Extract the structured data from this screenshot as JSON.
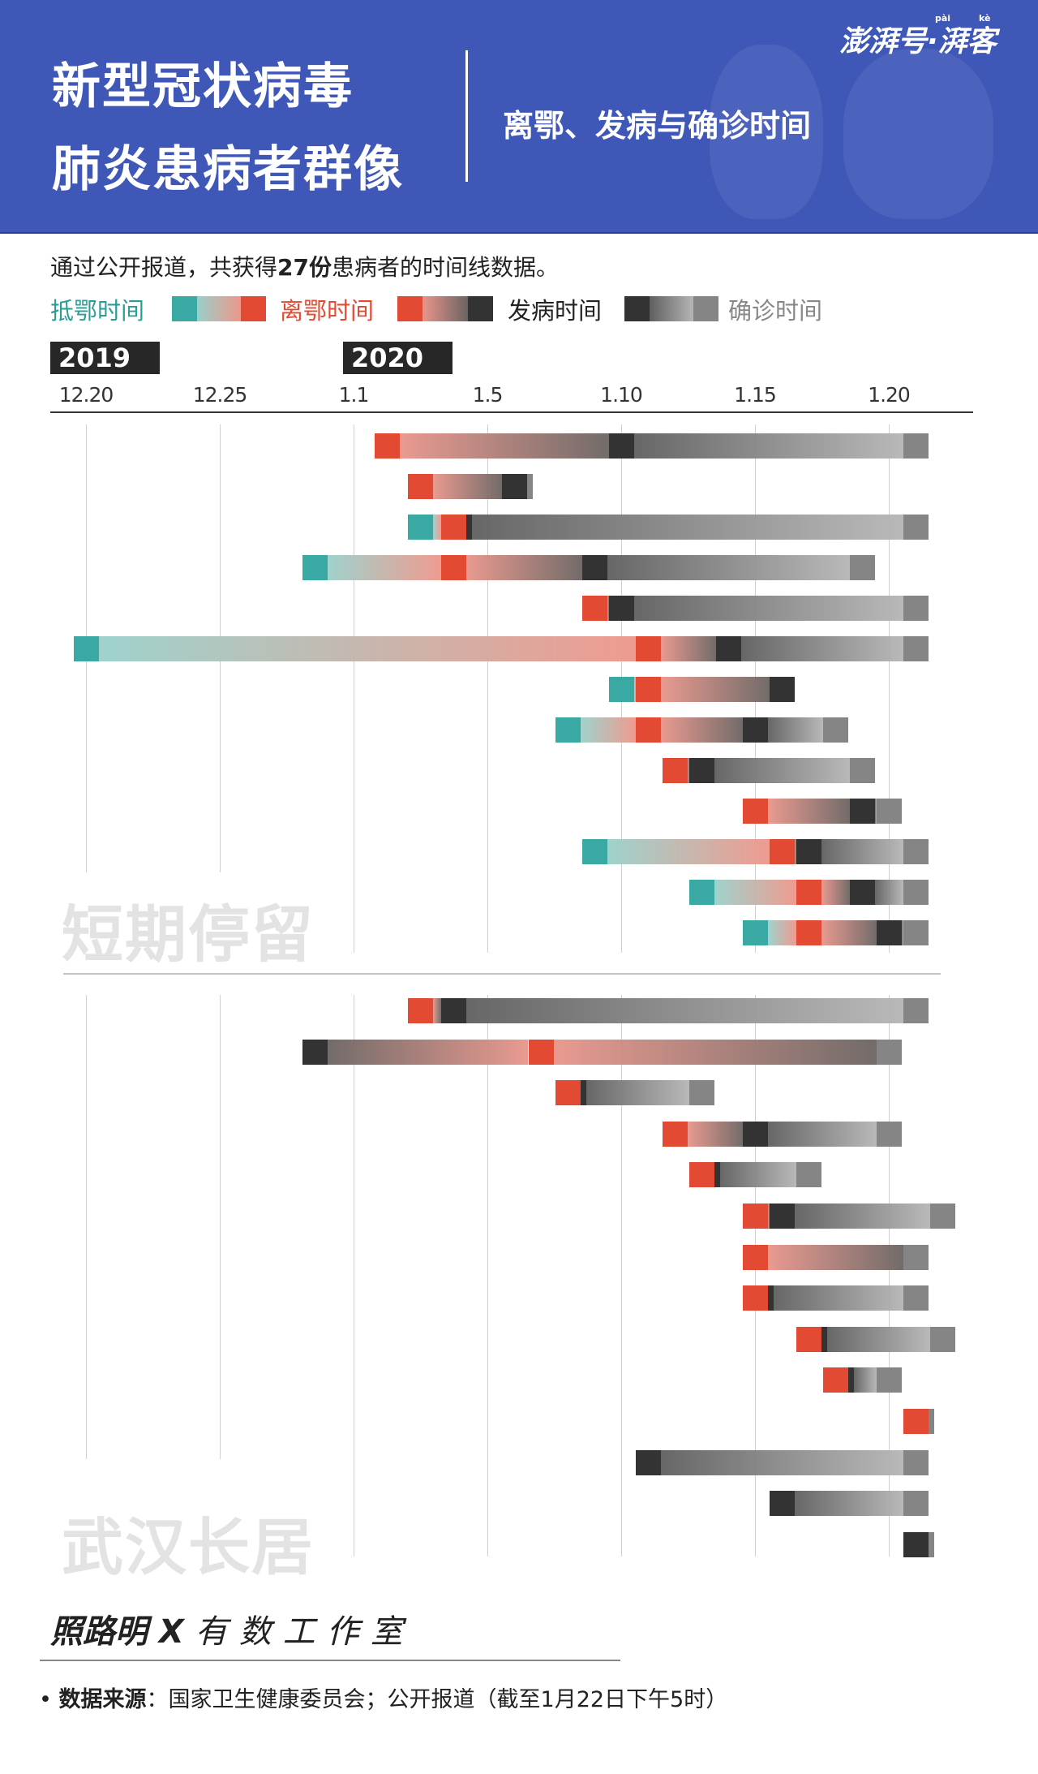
{
  "header": {
    "title_line1": "新型冠状病毒",
    "title_line2": "肺炎患病者群像",
    "subtitle": "离鄂、发病与确诊时间",
    "logo_text": "澎湃号·湃客",
    "logo_pinyin_1": "pài",
    "logo_pinyin_2": "kè",
    "background_color": "#3f58b8"
  },
  "intro": {
    "prefix": "通过公开报道，共获得",
    "count": "27份",
    "suffix": "患病者的时间线数据。"
  },
  "legend": [
    {
      "label": "抵鄂时间",
      "type": "arrive",
      "color": "#3aa9a4"
    },
    {
      "label": "离鄂时间",
      "type": "leave",
      "color": "#e34a33"
    },
    {
      "label": "发病时间",
      "type": "onset",
      "color": "#333333"
    },
    {
      "label": "确诊时间",
      "type": "confirm",
      "color": "#858585"
    }
  ],
  "footer": {
    "credit_author": "照路明 X ",
    "credit_studio": "有数工作室",
    "source_label": "数据来源",
    "source_text": "：国家卫生健康委员会；公开报道（截至1月22日下午5时）"
  },
  "chart_data": {
    "type": "timeline",
    "years": [
      "2019",
      "2020"
    ],
    "ticks": [
      "12.20",
      "12.25",
      "1.1",
      "1.5",
      "1.10",
      "1.15",
      "1.20"
    ],
    "grid": true,
    "colors": {
      "arrive": "#3aa9a4",
      "leave": "#e34a33",
      "onset": "#333333",
      "confirm": "#858585"
    },
    "groups": [
      {
        "label": "短期停留",
        "rows": [
          [
            [
              "leave",
              "1.2"
            ],
            [
              "onset",
              "1.10"
            ],
            [
              "confirm",
              "1.21"
            ]
          ],
          [
            [
              "leave",
              "1.3"
            ],
            [
              "onset",
              "1.6"
            ],
            [
              "confirm",
              "1.6"
            ]
          ],
          [
            [
              "arrive",
              "1.3"
            ],
            [
              "leave",
              "1.4"
            ],
            [
              "onset",
              "1.4"
            ],
            [
              "confirm",
              "1.21"
            ]
          ],
          [
            [
              "arrive",
              "12.30"
            ],
            [
              "leave",
              "1.4"
            ],
            [
              "onset",
              "1.9"
            ],
            [
              "confirm",
              "1.19"
            ]
          ],
          [
            [
              "leave",
              "1.9"
            ],
            [
              "onset",
              "1.10"
            ],
            [
              "confirm",
              "1.21"
            ]
          ],
          [
            [
              "arrive",
              "12.20"
            ],
            [
              "leave",
              "1.11"
            ],
            [
              "onset",
              "1.14"
            ],
            [
              "confirm",
              "1.21"
            ]
          ],
          [
            [
              "arrive",
              "1.10"
            ],
            [
              "leave",
              "1.11"
            ],
            [
              "onset",
              "1.16"
            ]
          ],
          [
            [
              "arrive",
              "1.8"
            ],
            [
              "leave",
              "1.11"
            ],
            [
              "onset",
              "1.15"
            ],
            [
              "confirm",
              "1.18"
            ]
          ],
          [
            [
              "leave",
              "1.12"
            ],
            [
              "onset",
              "1.13"
            ],
            [
              "confirm",
              "1.19"
            ]
          ],
          [
            [
              "leave",
              "1.15"
            ],
            [
              "onset",
              "1.19"
            ],
            [
              "confirm",
              "1.20"
            ]
          ],
          [
            [
              "arrive",
              "1.9"
            ],
            [
              "leave",
              "1.16"
            ],
            [
              "onset",
              "1.17"
            ],
            [
              "confirm",
              "1.21"
            ]
          ],
          [
            [
              "arrive",
              "1.13"
            ],
            [
              "leave",
              "1.17"
            ],
            [
              "onset",
              "1.19"
            ],
            [
              "confirm",
              "1.21"
            ]
          ],
          [
            [
              "arrive",
              "1.15"
            ],
            [
              "leave",
              "1.17"
            ],
            [
              "onset",
              "1.20"
            ],
            [
              "confirm",
              "1.21"
            ]
          ]
        ]
      },
      {
        "label": "武汉长居",
        "rows": [
          [
            [
              "leave",
              "1.3"
            ],
            [
              "onset",
              "1.4"
            ],
            [
              "confirm",
              "1.21"
            ]
          ],
          [
            [
              "onset",
              "12.30"
            ],
            [
              "leave",
              "1.7"
            ],
            [
              "confirm",
              "1.20"
            ]
          ],
          [
            [
              "leave",
              "1.8"
            ],
            [
              "onset",
              "1.8"
            ],
            [
              "confirm",
              "1.13"
            ]
          ],
          [
            [
              "leave",
              "1.12"
            ],
            [
              "onset",
              "1.15"
            ],
            [
              "confirm",
              "1.20"
            ]
          ],
          [
            [
              "leave",
              "1.13"
            ],
            [
              "onset",
              "1.13"
            ],
            [
              "confirm",
              "1.17"
            ]
          ],
          [
            [
              "leave",
              "1.15"
            ],
            [
              "onset",
              "1.16"
            ],
            [
              "confirm",
              "1.22"
            ]
          ],
          [
            [
              "leave",
              "1.15"
            ],
            [
              "confirm",
              "1.21"
            ]
          ],
          [
            [
              "leave",
              "1.15"
            ],
            [
              "onset",
              "1.15"
            ],
            [
              "confirm",
              "1.21"
            ]
          ],
          [
            [
              "leave",
              "1.17"
            ],
            [
              "onset",
              "1.17"
            ],
            [
              "confirm",
              "1.22"
            ]
          ],
          [
            [
              "leave",
              "1.18"
            ],
            [
              "onset",
              "1.18"
            ],
            [
              "confirm",
              "1.20"
            ]
          ],
          [
            [
              "leave",
              "1.21"
            ],
            [
              "confirm",
              "1.21"
            ]
          ],
          [
            [
              "onset",
              "1.11"
            ],
            [
              "confirm",
              "1.21"
            ]
          ],
          [
            [
              "onset",
              "1.16"
            ],
            [
              "confirm",
              "1.21"
            ]
          ],
          [
            [
              "onset",
              "1.21"
            ],
            [
              "confirm",
              "1.21"
            ]
          ]
        ]
      }
    ]
  }
}
